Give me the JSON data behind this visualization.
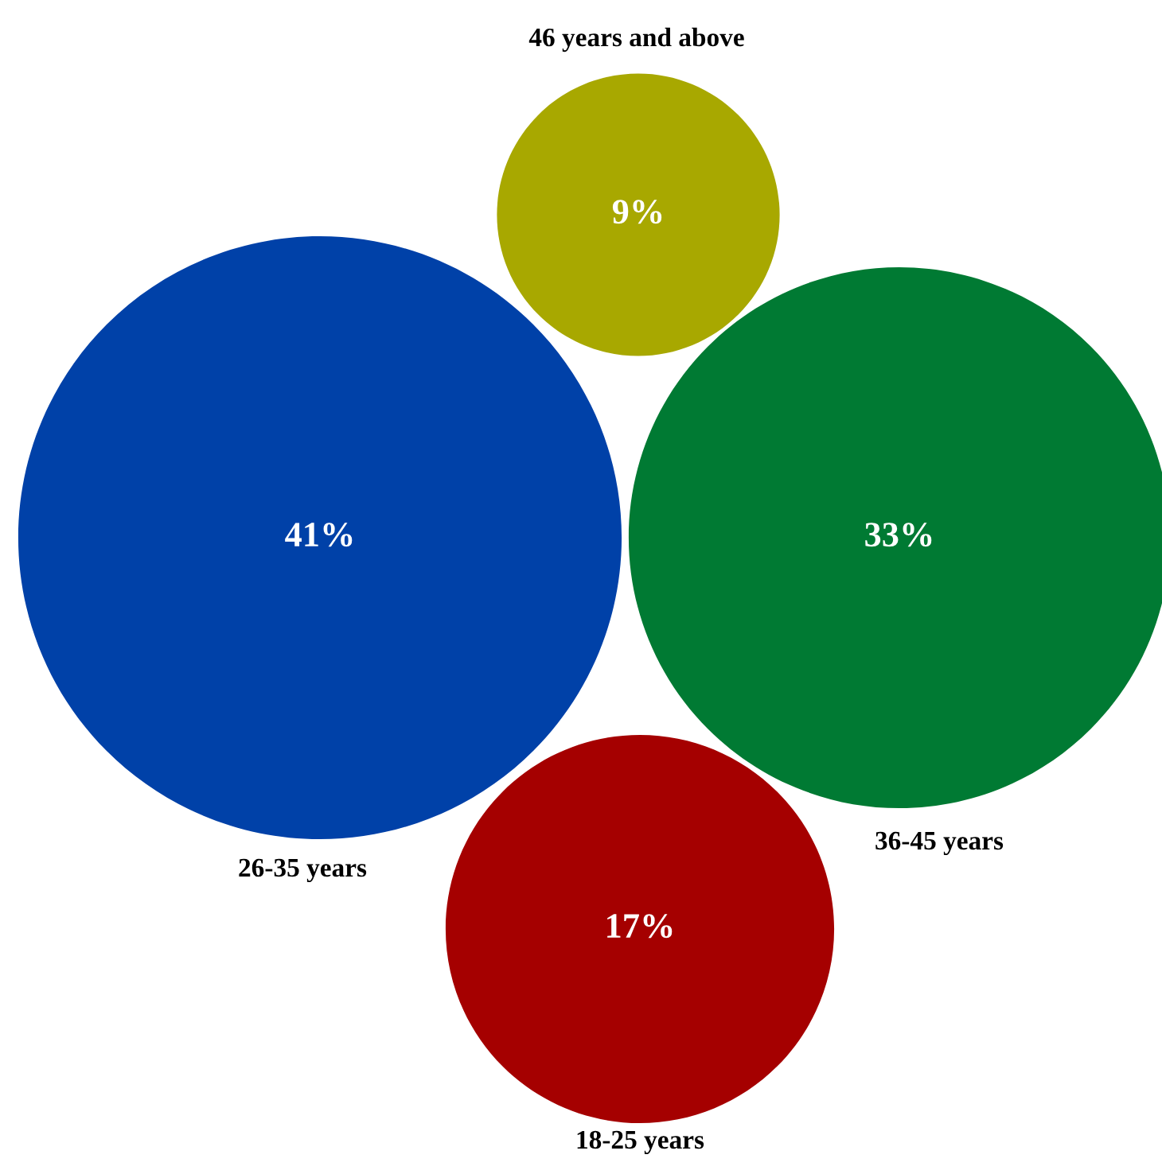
{
  "chart_data": {
    "type": "other",
    "categories": [
      "18-25 years",
      "26-35 years",
      "36-45 years",
      "46 years and above"
    ],
    "values": [
      17,
      41,
      33,
      9
    ],
    "value_labels": [
      "17%",
      "41%",
      "33%",
      "9%"
    ],
    "colors": [
      "#a50000",
      "#0041a8",
      "#007a33",
      "#a8a800"
    ]
  }
}
